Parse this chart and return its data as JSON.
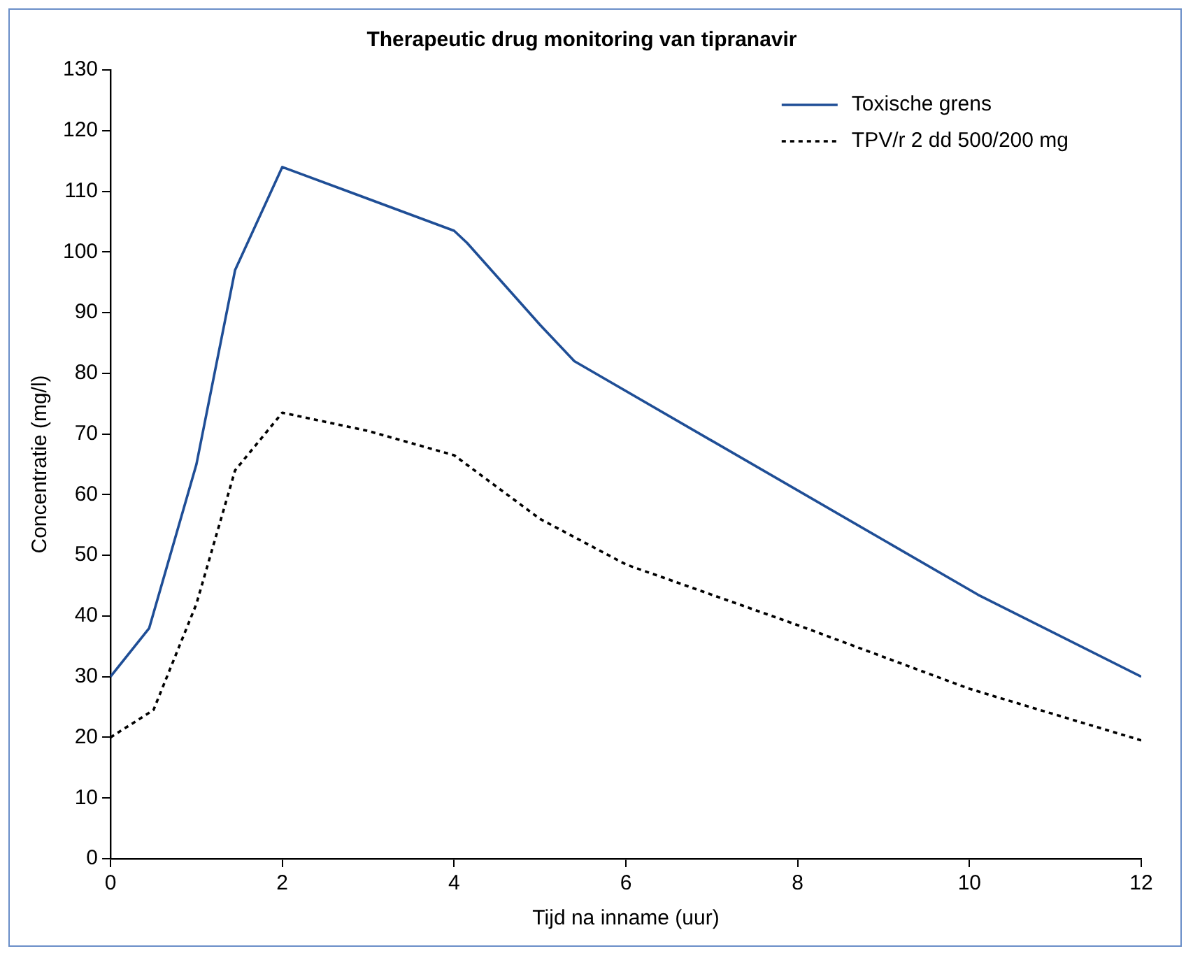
{
  "chart_data": {
    "type": "line",
    "title": "Therapeutic drug monitoring van tipranavir",
    "xlabel": "Tijd na inname (uur)",
    "ylabel": "Concentratie (mg/l)",
    "xlim": [
      0,
      12
    ],
    "xticks": [
      0,
      2,
      4,
      6,
      8,
      10,
      12
    ],
    "ylim": [
      0,
      130
    ],
    "yticks": [
      0,
      10,
      20,
      30,
      40,
      50,
      60,
      70,
      80,
      90,
      100,
      110,
      120,
      130
    ],
    "grid": false,
    "legend": "top right",
    "marker": "none",
    "series": [
      {
        "name": "Toxische grens",
        "color": "#1f4e96",
        "line_style": "solid",
        "x": [
          0,
          0.45,
          1,
          1.45,
          2,
          4,
          4.15,
          5,
          5.4,
          10.1,
          12
        ],
        "values": [
          30,
          38,
          65,
          97,
          114,
          103.5,
          101.5,
          88,
          82,
          43.5,
          30
        ]
      },
      {
        "name": "TPV/r 2 dd 500/200 mg",
        "color": "#000000",
        "line_style": "dotted",
        "x": [
          0,
          0.5,
          1,
          1.45,
          2,
          3,
          4,
          5,
          6,
          8,
          10,
          12
        ],
        "values": [
          20,
          24.5,
          42,
          64,
          73.5,
          70.5,
          66.5,
          56,
          48.5,
          38.5,
          28,
          19.5
        ]
      }
    ]
  }
}
